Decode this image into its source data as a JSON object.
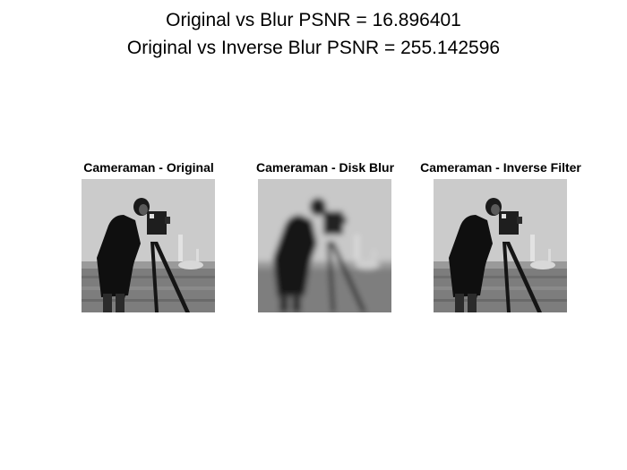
{
  "window": {
    "suptitle_line1": "Original vs Blur PSNR = 16.896401",
    "suptitle_line2": "Original vs Inverse Blur PSNR = 255.142596"
  },
  "panels": [
    {
      "title": "Cameraman - Original",
      "image": "cameraman-grayscale",
      "blurred": false
    },
    {
      "title": "Cameraman - Disk Blur",
      "image": "cameraman-grayscale",
      "blurred": true
    },
    {
      "title": "Cameraman - Inverse Filter",
      "image": "cameraman-grayscale",
      "blurred": false
    }
  ],
  "colors": {
    "background": "#ffffff",
    "text": "#000000"
  }
}
